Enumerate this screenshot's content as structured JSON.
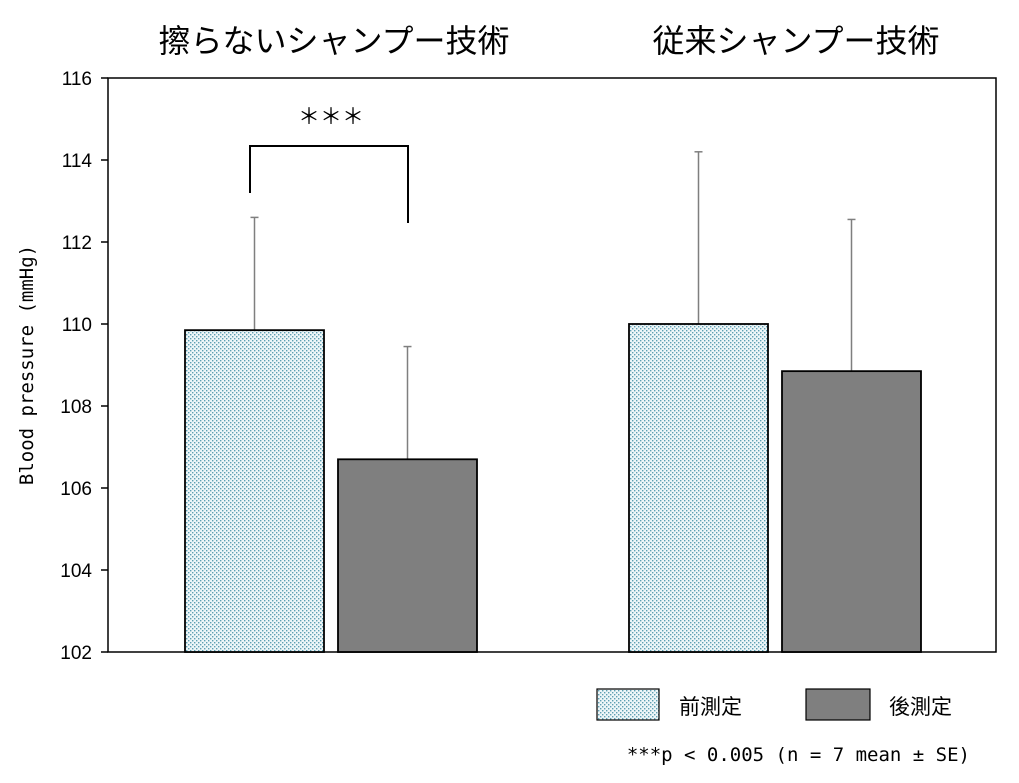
{
  "chart_data": {
    "type": "bar",
    "ylabel": "Blood pressure (mmHg)",
    "ylim": [
      102,
      116
    ],
    "yticks": [
      "102",
      "104",
      "106",
      "108",
      "110",
      "112",
      "114",
      "116"
    ],
    "ytick_values": [
      102,
      104,
      106,
      108,
      110,
      112,
      114,
      116
    ],
    "categories": [
      "擦らないシャンプー技術",
      "従来シャンプー技術"
    ],
    "series": [
      {
        "name": "前測定",
        "values": [
          109.85,
          110.0
        ],
        "errors": [
          2.75,
          4.2
        ],
        "color": "#e6f1f4",
        "pattern": "dotted"
      },
      {
        "name": "後測定",
        "values": [
          106.7,
          108.85
        ],
        "errors": [
          2.75,
          3.7
        ],
        "color": "#7f7f7f",
        "pattern": "solid"
      }
    ],
    "significance": {
      "group": 0,
      "label": "＊＊＊"
    },
    "note": "***p < 0.005 (n = 7 mean ± SE)",
    "legend_position": "bottom-right",
    "grid": false
  }
}
